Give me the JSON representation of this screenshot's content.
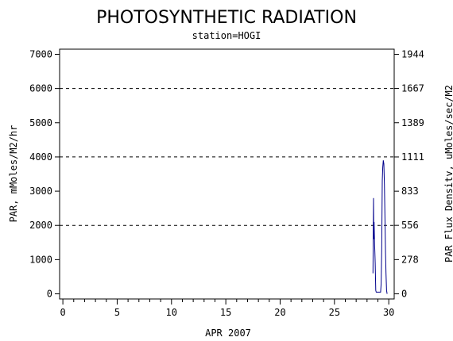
{
  "chart_data": {
    "type": "line",
    "title": "PHOTOSYNTHETIC RADIATION",
    "subtitle": "station=HOGI",
    "xlabel": "APR 2007",
    "ylabel": "PAR, mMoles/M2/hr",
    "y2label": "PAR Flux Densitv, uMoles/sec/M2",
    "xlim": [
      -0.3,
      30.5
    ],
    "ylim": [
      -150,
      7150
    ],
    "x_ticks": [
      0,
      5,
      10,
      15,
      20,
      25,
      30
    ],
    "x_minor_step": 1,
    "y_ticks": [
      0,
      1000,
      2000,
      3000,
      4000,
      5000,
      6000,
      7000
    ],
    "y2_ticks": [
      {
        "value": 0,
        "label": "0"
      },
      {
        "value": 1000.8,
        "label": "278"
      },
      {
        "value": 2001.6,
        "label": "556"
      },
      {
        "value": 2998.8,
        "label": "833"
      },
      {
        "value": 3999.6,
        "label": "1111"
      },
      {
        "value": 5000.4,
        "label": "1389"
      },
      {
        "value": 6001.2,
        "label": "1667"
      },
      {
        "value": 6998.4,
        "label": "1944"
      }
    ],
    "gridlines_y": [
      2000,
      4000,
      6000
    ],
    "grid_style": "dashed",
    "legend": "none",
    "series": [
      {
        "color": "#00008b",
        "x": [
          28.55,
          28.6,
          28.62,
          28.65,
          28.68,
          28.7,
          28.72,
          28.75,
          28.8,
          28.85,
          28.9,
          29.0,
          29.1,
          29.2,
          29.25,
          29.3,
          29.35,
          29.4,
          29.45,
          29.5,
          29.55,
          29.6,
          29.65,
          29.7,
          29.75,
          29.8,
          29.85
        ],
        "y": [
          600,
          2800,
          1600,
          2100,
          1700,
          1400,
          1200,
          900,
          100,
          50,
          50,
          50,
          50,
          50,
          50,
          300,
          1300,
          3300,
          3700,
          3900,
          3800,
          3200,
          2200,
          1200,
          600,
          100,
          0
        ]
      }
    ]
  }
}
